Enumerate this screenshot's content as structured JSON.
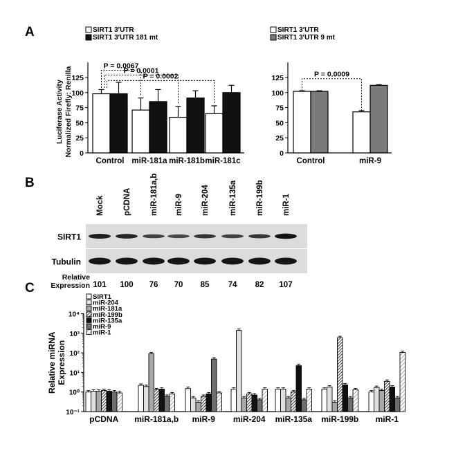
{
  "panels": {
    "a": {
      "letter": "A"
    },
    "b": {
      "letter": "B"
    },
    "c": {
      "letter": "C"
    }
  },
  "chart_data": [
    {
      "id": "A-left",
      "type": "bar",
      "ylabel_lines": [
        "Luciferase Activity",
        "Normalized Firefly: Renilla"
      ],
      "ylim": [
        0,
        150
      ],
      "yticks": [
        0,
        25,
        50,
        75,
        100,
        125
      ],
      "categories": [
        "Control",
        "miR-181a",
        "miR-181b",
        "miR-181c"
      ],
      "series": [
        {
          "name": "SIRT1 3′UTR",
          "color": "#ffffff",
          "values": [
            98,
            71,
            59,
            65
          ],
          "errors": [
            7,
            20,
            18,
            13
          ]
        },
        {
          "name": "SIRT1 3′UTR 181 mt",
          "color": "#111111",
          "values": [
            98,
            85,
            91,
            100
          ],
          "errors": [
            19,
            20,
            12,
            12
          ]
        }
      ],
      "annotations": [
        "P = 0.0067",
        "P = 0.0001",
        "P = 0.0002"
      ],
      "legend": "top-left"
    },
    {
      "id": "A-right",
      "type": "bar",
      "ylim": [
        0,
        150
      ],
      "yticks": [
        0,
        25,
        50,
        75,
        100,
        125
      ],
      "categories": [
        "Control",
        "miR-9"
      ],
      "series": [
        {
          "name": "SIRT1 3′UTR",
          "color": "#ffffff",
          "values": [
            102,
            68
          ],
          "errors": [
            1,
            2
          ]
        },
        {
          "name": "SIRT1 3′UTR 9 mt",
          "color": "#7a7a7a",
          "values": [
            102,
            112
          ],
          "errors": [
            1,
            1
          ]
        }
      ],
      "annotations": [
        "P = 0.0009"
      ],
      "legend": "top-left"
    },
    {
      "id": "B",
      "type": "table",
      "columns": [
        "Mock",
        "pCDNA",
        "miR-181a,b",
        "miR-9",
        "miR-204",
        "miR-135a",
        "miR-199b",
        "miR-1"
      ],
      "rows": [
        "SIRT1",
        "Tubulin"
      ],
      "row_label_expr": [
        "Relative",
        "Expression"
      ],
      "relative_expression": [
        101,
        100,
        76,
        70,
        85,
        74,
        82,
        107
      ],
      "sirt1_intensity": [
        0.85,
        0.8,
        0.6,
        0.55,
        0.68,
        0.6,
        0.68,
        0.95
      ]
    },
    {
      "id": "C",
      "type": "bar",
      "yscale": "log",
      "ylabel_lines": [
        "Relative miRNA",
        "Expression"
      ],
      "ylim": [
        0.1,
        10000
      ],
      "yticks": [
        "10⁻¹",
        "10⁰",
        "10¹",
        "10²",
        "10³",
        "10⁴"
      ],
      "categories": [
        "pCDNA",
        "miR-181a,b",
        "miR-9",
        "miR-204",
        "miR-135a",
        "miR-199b",
        "miR-1"
      ],
      "series": [
        {
          "name": "SIRT1",
          "color": "#ffffff",
          "pattern": "solid",
          "values": [
            1.0,
            2.2,
            1.5,
            1.4,
            1.4,
            1.4,
            1.0
          ]
        },
        {
          "name": "miR-204",
          "color": "#e0e0e0",
          "pattern": "solid",
          "values": [
            1.1,
            1.9,
            0.5,
            1400,
            1.4,
            1.8,
            1.7
          ]
        },
        {
          "name": "miR-181a",
          "color": "#a8a8a8",
          "pattern": "solid",
          "values": [
            1.1,
            90,
            0.3,
            0.5,
            0.5,
            0.3,
            1.2
          ]
        },
        {
          "name": "miR-199b",
          "color": "#555555",
          "pattern": "diag-dense",
          "values": [
            1.2,
            1.3,
            0.6,
            0.8,
            1.0,
            600,
            3.5
          ]
        },
        {
          "name": "miR-135a",
          "color": "#111111",
          "pattern": "solid",
          "values": [
            1.1,
            1.4,
            0.8,
            0.7,
            22,
            2.3,
            1.8
          ]
        },
        {
          "name": "miR-9",
          "color": "#6e6e6e",
          "pattern": "solid",
          "values": [
            1.0,
            0.6,
            48,
            0.4,
            0.4,
            0.5,
            0.5
          ]
        },
        {
          "name": "miR-1",
          "color": "#ffffff",
          "pattern": "diag-light",
          "values": [
            0.9,
            0.8,
            0.9,
            1.4,
            1.4,
            1.3,
            105
          ]
        }
      ],
      "legend": "top-left"
    }
  ]
}
